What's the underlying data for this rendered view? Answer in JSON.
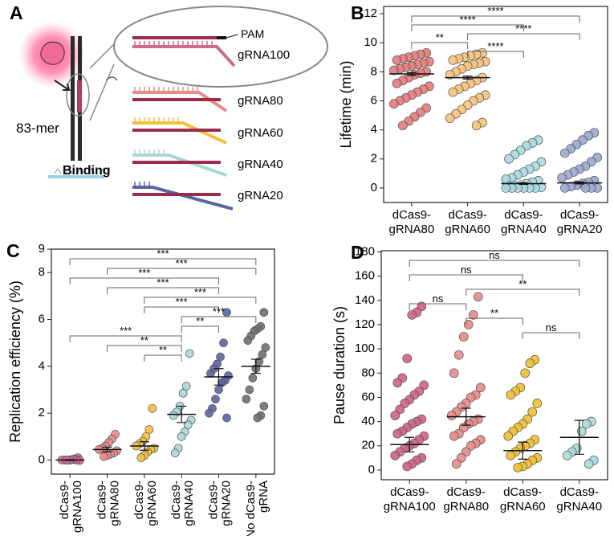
{
  "diagram": {
    "panel_label": "A",
    "pam": "PAM",
    "strands": [
      "gRNA100",
      "gRNA80",
      "gRNA60",
      "gRNA40",
      "gRNA20"
    ],
    "oligo": "83-mer",
    "binding": "Binding"
  },
  "chart_data": [
    {
      "type": "dotplot",
      "panel_label": "B",
      "ylabel": "Lifetime (min)",
      "categories": [
        [
          "dCas9-",
          "gRNA80"
        ],
        [
          "dCas9-",
          "gRNA60"
        ],
        [
          "dCas9-",
          "gRNA40"
        ],
        [
          "dCas9-",
          "gRNA20"
        ]
      ],
      "colors": [
        "#e57b7b",
        "#f7c27a",
        "#a9d9e0",
        "#9aa8d0"
      ],
      "values": [
        [
          9.3,
          9.2,
          9.1,
          9.0,
          8.9,
          8.8,
          8.7,
          8.6,
          8.5,
          8.4,
          8.3,
          8.2,
          8.1,
          8.0,
          7.9,
          7.8,
          7.6,
          7.4,
          7.2,
          7.0,
          6.8,
          6.6,
          6.4,
          6.2,
          6.0,
          5.8,
          5.5,
          5.2,
          4.9,
          4.6,
          4.3
        ],
        [
          9.3,
          9.2,
          9.1,
          9.0,
          8.9,
          8.8,
          8.7,
          8.6,
          8.5,
          8.4,
          8.2,
          8.0,
          7.8,
          7.6,
          7.4,
          7.2,
          7.0,
          6.8,
          6.6,
          6.4,
          6.2,
          6.0,
          5.7,
          5.4,
          5.1,
          4.8,
          4.5,
          4.3
        ],
        [
          3.3,
          3.1,
          2.9,
          2.6,
          2.3,
          2.0,
          1.8,
          1.5,
          1.3,
          1.1,
          0.9,
          0.7,
          0.6,
          0.5,
          0.4,
          0.3,
          0.2,
          0.15,
          0.1,
          0.05,
          0,
          0,
          0,
          0,
          0,
          0
        ],
        [
          3.8,
          3.6,
          3.3,
          3.0,
          2.7,
          2.4,
          2.1,
          1.8,
          1.5,
          1.3,
          1.1,
          0.9,
          0.7,
          0.5,
          0.4,
          0.3,
          0.2,
          0.1,
          0,
          0,
          0,
          0
        ]
      ],
      "means": [
        7.85,
        7.6,
        0.3,
        0.35
      ],
      "errors": [
        0.1,
        0.1,
        0.05,
        0.07
      ],
      "ylim": [
        -1,
        12.5
      ],
      "yticks": [
        0,
        2,
        4,
        6,
        8,
        10,
        12
      ],
      "brackets": [
        {
          "pair": [
            0,
            3
          ],
          "label": "****"
        },
        {
          "pair": [
            0,
            2
          ],
          "label": "****"
        },
        {
          "pair": [
            1,
            3
          ],
          "label": "****"
        },
        {
          "pair": [
            0,
            1
          ],
          "label": "**"
        },
        {
          "pair": [
            1,
            2
          ],
          "label": "****"
        }
      ]
    },
    {
      "type": "dotplot",
      "panel_label": "C",
      "ylabel": "Replication efficiency (%)",
      "xlabel_rotation": 90,
      "categories": [
        [
          "dCas9-",
          "gRNA100"
        ],
        [
          "dCas9-",
          "gRNA80"
        ],
        [
          "dCas9-",
          "gRNA60"
        ],
        [
          "dCas9-",
          "gRNA40"
        ],
        [
          "dCas9-",
          "gRNA20"
        ],
        [
          "No dCas9-",
          "gRNA"
        ]
      ],
      "colors": [
        "#d06890",
        "#e88a8a",
        "#f2c040",
        "#a8d8d8",
        "#5a64a0",
        "#707070"
      ],
      "values": [
        [
          0.1,
          0.05,
          0.02,
          0,
          0,
          0,
          -0.02,
          0,
          0.03,
          0,
          0
        ],
        [
          1.1,
          0.9,
          0.75,
          0.6,
          0.5,
          0.45,
          0.4,
          0.3,
          0.25,
          0.2,
          0.15
        ],
        [
          2.2,
          1.3,
          1.0,
          0.8,
          0.7,
          0.6,
          0.5,
          0.45,
          0.35,
          0.2,
          0.1
        ],
        [
          4.55,
          3.15,
          2.85,
          2.3,
          2.05,
          1.9,
          1.7,
          1.5,
          1.2,
          1.0,
          0.5,
          0.3
        ],
        [
          6.3,
          5.0,
          4.4,
          4.1,
          3.9,
          3.7,
          3.6,
          3.4,
          3.3,
          3.0,
          2.6,
          2.2,
          2.0,
          1.8
        ],
        [
          6.3,
          5.7,
          5.6,
          5.5,
          5.3,
          5.1,
          4.8,
          4.5,
          4.2,
          3.9,
          3.5,
          3.0,
          2.6,
          2.3,
          1.9,
          1.8
        ]
      ],
      "means": [
        0,
        0.45,
        0.6,
        1.95,
        3.55,
        4.0
      ],
      "errors": [
        0.02,
        0.1,
        0.18,
        0.35,
        0.35,
        0.3
      ],
      "ylim": [
        -0.6,
        9
      ],
      "yticks": [
        0,
        2,
        4,
        6,
        8,
        9
      ],
      "brackets": [
        {
          "pair": [
            0,
            5
          ],
          "label": "***"
        },
        {
          "pair": [
            1,
            5
          ],
          "label": "***"
        },
        {
          "pair": [
            0,
            4
          ],
          "label": "***"
        },
        {
          "pair": [
            1,
            4
          ],
          "label": "***"
        },
        {
          "pair": [
            2,
            5
          ],
          "label": "***"
        },
        {
          "pair": [
            2,
            4
          ],
          "label": "***"
        },
        {
          "pair": [
            3,
            5
          ],
          "label": "***"
        },
        {
          "pair": [
            3,
            4
          ],
          "label": "**"
        },
        {
          "pair": [
            0,
            3
          ],
          "label": "***"
        },
        {
          "pair": [
            1,
            3
          ],
          "label": "**"
        },
        {
          "pair": [
            2,
            3
          ],
          "label": "**"
        }
      ]
    },
    {
      "type": "dotplot",
      "panel_label": "D",
      "ylabel": "Pause duration (s)",
      "categories": [
        [
          "dCas9-",
          "gRNA100"
        ],
        [
          "dCas9-",
          "gRNA80"
        ],
        [
          "dCas9-",
          "gRNA60"
        ],
        [
          "dCas9-",
          "gRNA40"
        ]
      ],
      "colors": [
        "#d0608a",
        "#e88a8a",
        "#f0c030",
        "#a8dcd8"
      ],
      "values": [
        [
          135,
          130,
          128,
          92,
          76,
          72,
          70,
          65,
          62,
          58,
          55,
          50,
          45,
          42,
          40,
          38,
          35,
          32,
          30,
          28,
          25,
          22,
          20,
          18,
          15,
          12,
          10,
          8,
          5,
          3
        ],
        [
          143,
          128,
          120,
          110,
          95,
          80,
          68,
          62,
          60,
          55,
          52,
          48,
          45,
          42,
          40,
          38,
          35,
          30,
          28,
          25,
          22,
          20,
          15,
          10,
          5
        ],
        [
          91,
          88,
          80,
          68,
          65,
          62,
          55,
          48,
          42,
          38,
          35,
          32,
          28,
          25,
          22,
          20,
          18,
          15,
          12,
          10,
          8,
          5,
          3,
          2
        ],
        [
          40,
          38,
          32,
          18,
          15,
          12,
          8,
          5
        ]
      ],
      "means": [
        21,
        44,
        16,
        27
      ],
      "errors": [
        6,
        7,
        7,
        14
      ],
      "ylim": [
        -8,
        181
      ],
      "yticks": [
        0,
        20,
        40,
        60,
        80,
        100,
        120,
        140,
        160,
        180
      ],
      "brackets": [
        {
          "pair": [
            0,
            3
          ],
          "label": "ns"
        },
        {
          "pair": [
            0,
            2
          ],
          "label": "ns"
        },
        {
          "pair": [
            1,
            3
          ],
          "label": "**"
        },
        {
          "pair": [
            0,
            1
          ],
          "label": "ns"
        },
        {
          "pair": [
            1,
            2
          ],
          "label": "**"
        },
        {
          "pair": [
            2,
            3
          ],
          "label": "ns"
        }
      ]
    }
  ]
}
